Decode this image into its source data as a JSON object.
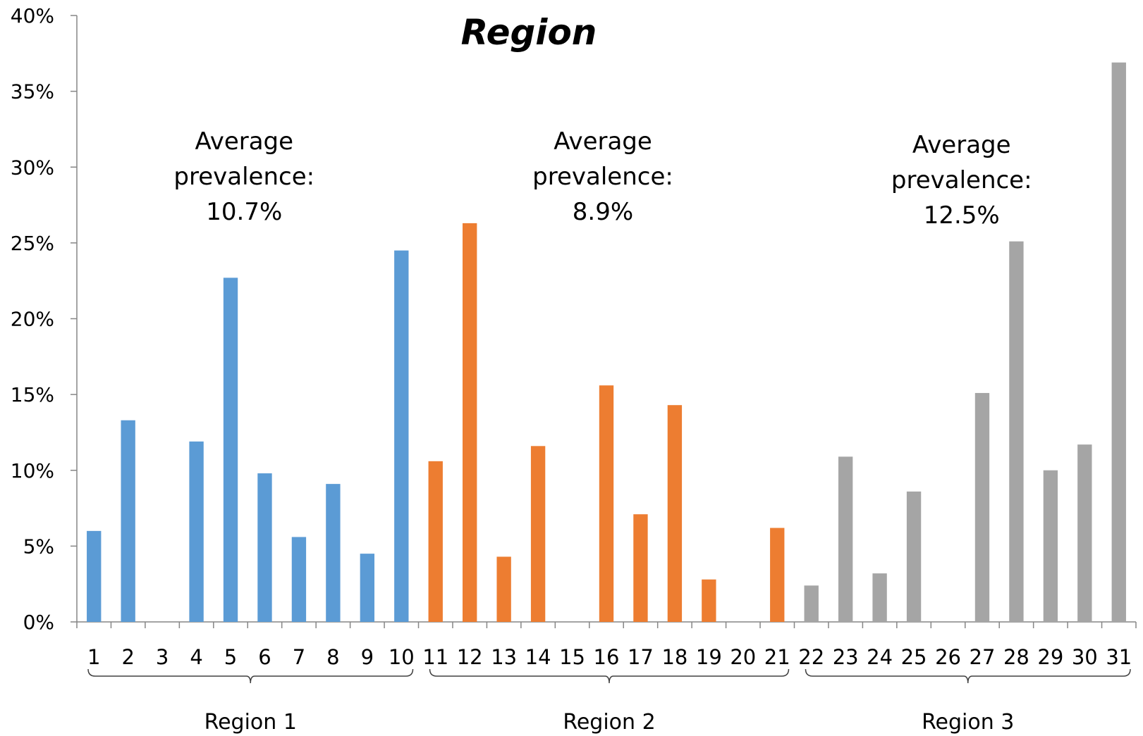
{
  "chart_data": {
    "type": "bar",
    "title": "Region",
    "xlabel": "",
    "ylabel": "",
    "ylim": [
      0,
      40
    ],
    "y_ticks": [
      "0%",
      "5%",
      "10%",
      "15%",
      "20%",
      "25%",
      "30%",
      "35%",
      "40%"
    ],
    "categories": [
      "1",
      "2",
      "3",
      "4",
      "5",
      "6",
      "7",
      "8",
      "9",
      "10",
      "11",
      "12",
      "13",
      "14",
      "15",
      "16",
      "17",
      "18",
      "19",
      "20",
      "21",
      "22",
      "23",
      "24",
      "25",
      "26",
      "27",
      "28",
      "29",
      "30",
      "31"
    ],
    "values": [
      6.0,
      13.3,
      0,
      11.9,
      22.7,
      9.8,
      5.6,
      9.1,
      4.5,
      24.5,
      10.6,
      26.3,
      4.3,
      11.6,
      0,
      15.6,
      7.1,
      14.3,
      2.8,
      0,
      6.2,
      2.4,
      10.9,
      3.2,
      8.6,
      0,
      15.1,
      25.1,
      10.0,
      11.7,
      36.9
    ],
    "groups": [
      {
        "label": "Region 1",
        "start": 0,
        "end": 9,
        "color": "#5B9BD5",
        "annotation": [
          "Average",
          "prevalence:",
          "10.7%"
        ]
      },
      {
        "label": "Region 2",
        "start": 10,
        "end": 20,
        "color": "#ED7D31",
        "annotation": [
          "Average",
          "prevalence:",
          "8.9%"
        ]
      },
      {
        "label": "Region 3",
        "start": 21,
        "end": 30,
        "color": "#A5A5A5",
        "annotation": [
          "Average",
          "prevalence:",
          "12.5%"
        ]
      }
    ],
    "grid": false,
    "legend": "none"
  }
}
